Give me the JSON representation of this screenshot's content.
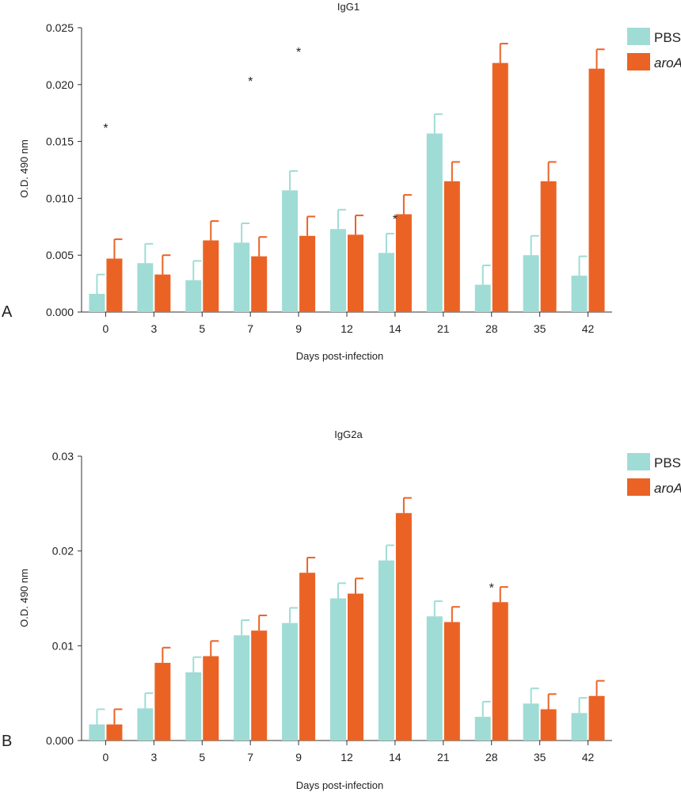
{
  "colors": {
    "PBS": "#9fdcd5",
    "aroA": "#ea6325",
    "axis": "#333333"
  },
  "chart_data": [
    {
      "type": "bar",
      "panel": "A",
      "title": "IgG1",
      "xlabel": "Days post-infection",
      "ylabel": "O.D. 490 nm",
      "ylim": [
        0,
        0.025
      ],
      "yticks": [
        "0.000",
        "0.005",
        "0.010",
        "0.015",
        "0.020",
        "0.025"
      ],
      "categories": [
        "0",
        "3",
        "5",
        "7",
        "9",
        "12",
        "14",
        "21",
        "28",
        "35",
        "42"
      ],
      "legend_position": "top-right",
      "series": [
        {
          "name": "PBS",
          "italic": false,
          "values": [
            0.0016,
            0.0043,
            0.0028,
            0.0061,
            0.0107,
            0.0073,
            0.0052,
            0.0157,
            0.0024,
            0.005,
            0.0032
          ],
          "errors": [
            0.0017,
            0.0017,
            0.0017,
            0.0017,
            0.0017,
            0.0017,
            0.0017,
            0.0017,
            0.0017,
            0.0017,
            0.0017
          ]
        },
        {
          "name": "aroA",
          "italic": true,
          "values": [
            0.0047,
            0.0033,
            0.0063,
            0.0049,
            0.0067,
            0.0068,
            0.0086,
            0.0115,
            0.0219,
            0.0115,
            0.0214
          ],
          "errors": [
            0.0017,
            0.0017,
            0.0017,
            0.0017,
            0.0017,
            0.0017,
            0.0017,
            0.0017,
            0.0017,
            0.0017,
            0.0017
          ]
        }
      ],
      "annotations": [
        {
          "text": "*",
          "category": "0",
          "y": 0.0165
        },
        {
          "text": "*",
          "category": "7",
          "y": 0.0206
        },
        {
          "text": "*",
          "category": "9",
          "y": 0.0232
        },
        {
          "text": "*",
          "category": "14",
          "y": 0.0085
        }
      ]
    },
    {
      "type": "bar",
      "panel": "B",
      "title": "IgG2a",
      "xlabel": "Days post-infection",
      "ylabel": "O.D. 490 nm",
      "ylim": [
        0,
        0.03
      ],
      "yticks": [
        "0.000",
        "0.01",
        "0.02",
        "0.03"
      ],
      "categories": [
        "0",
        "3",
        "5",
        "7",
        "9",
        "12",
        "14",
        "21",
        "28",
        "35",
        "42"
      ],
      "legend_position": "top-right",
      "series": [
        {
          "name": "PBS",
          "italic": false,
          "values": [
            0.0017,
            0.0034,
            0.0072,
            0.0111,
            0.0124,
            0.015,
            0.019,
            0.0131,
            0.0025,
            0.0039,
            0.0029
          ],
          "errors": [
            0.0016,
            0.0016,
            0.0016,
            0.0016,
            0.0016,
            0.0016,
            0.0016,
            0.0016,
            0.0016,
            0.0016,
            0.0016
          ]
        },
        {
          "name": "aroA",
          "italic": true,
          "values": [
            0.0017,
            0.0082,
            0.0089,
            0.0116,
            0.0177,
            0.0155,
            0.024,
            0.0125,
            0.0146,
            0.0033,
            0.0047
          ],
          "errors": [
            0.0016,
            0.0016,
            0.0016,
            0.0016,
            0.0016,
            0.0016,
            0.0016,
            0.0016,
            0.0016,
            0.0016,
            0.0016
          ]
        }
      ],
      "annotations": [
        {
          "text": "*",
          "category": "28",
          "y": 0.0165
        }
      ]
    }
  ]
}
